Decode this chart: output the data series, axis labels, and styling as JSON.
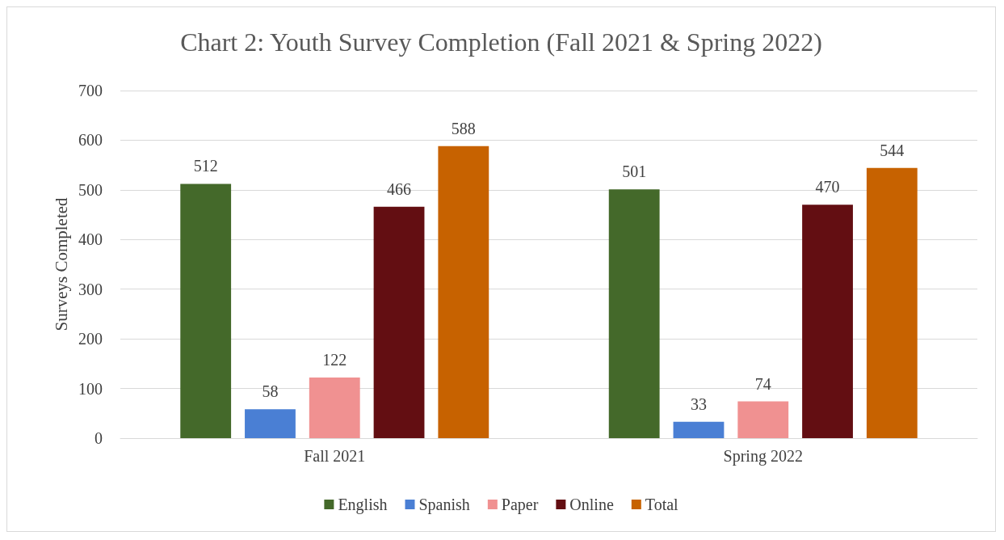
{
  "chart_data": {
    "type": "bar",
    "title": "Chart 2: Youth Survey Completion (Fall 2021 & Spring 2022)",
    "ylabel": "Surveys Completed",
    "categories": [
      "Fall 2021",
      "Spring 2022"
    ],
    "series": [
      {
        "name": "English",
        "color": "#44692a",
        "values": [
          512,
          501
        ]
      },
      {
        "name": "Spanish",
        "color": "#4a7fd4",
        "values": [
          58,
          33
        ]
      },
      {
        "name": "Paper",
        "color": "#f09191",
        "values": [
          122,
          74
        ]
      },
      {
        "name": "Online",
        "color": "#630e12",
        "values": [
          466,
          470
        ]
      },
      {
        "name": "Total",
        "color": "#c76200",
        "values": [
          588,
          544
        ]
      }
    ],
    "ylim": [
      0,
      700
    ],
    "yticks": [
      0,
      100,
      200,
      300,
      400,
      500,
      600,
      700
    ],
    "grid": "y",
    "legend": "bottom",
    "data_labels": true
  }
}
